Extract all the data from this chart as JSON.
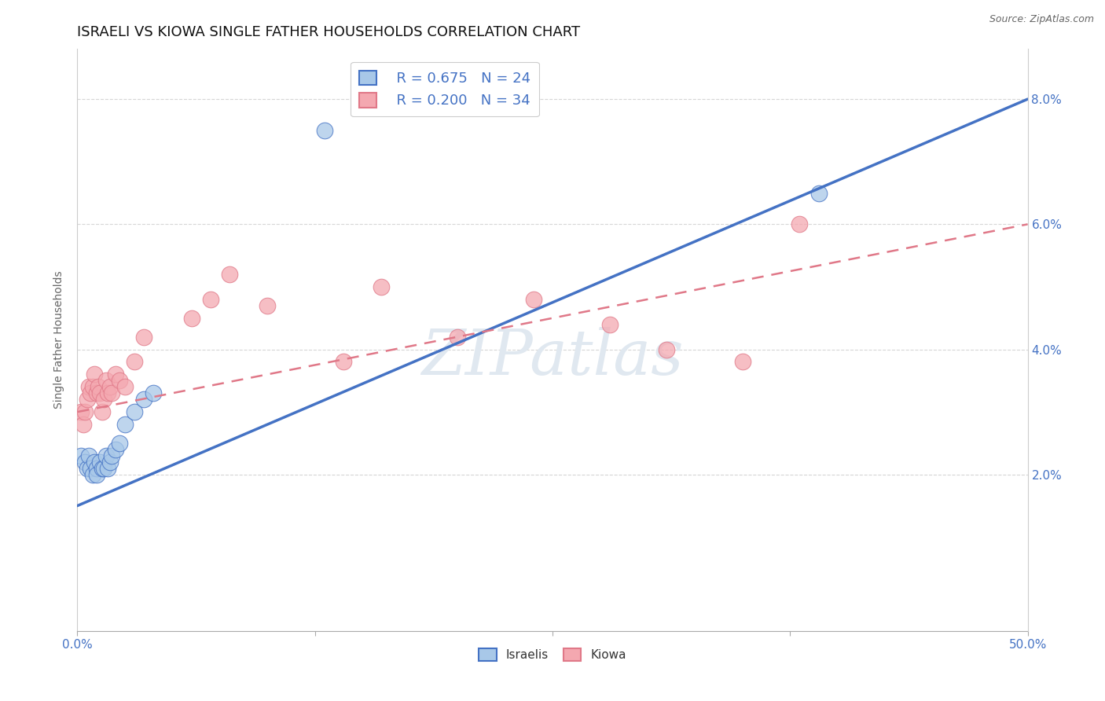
{
  "title": "ISRAELI VS KIOWA SINGLE FATHER HOUSEHOLDS CORRELATION CHART",
  "source": "Source: ZipAtlas.com",
  "ylabel": "Single Father Households",
  "xlim": [
    0.0,
    0.5
  ],
  "ylim": [
    -0.005,
    0.088
  ],
  "yticks": [
    0.02,
    0.04,
    0.06,
    0.08
  ],
  "ytick_labels": [
    "2.0%",
    "4.0%",
    "6.0%",
    "8.0%"
  ],
  "xticks": [
    0.0,
    0.125,
    0.25,
    0.375,
    0.5
  ],
  "xtick_labels": [
    "0.0%",
    "",
    "",
    "",
    "50.0%"
  ],
  "legend_israeli_r": "R = 0.675",
  "legend_israeli_n": "N = 24",
  "legend_kiowa_r": "R = 0.200",
  "legend_kiowa_n": "N = 34",
  "israeli_color": "#a8c8e8",
  "kiowa_color": "#f4a8b0",
  "israeli_line_color": "#4472c4",
  "kiowa_line_color": "#e07888",
  "background_color": "#ffffff",
  "grid_color": "#cccccc",
  "israeli_x": [
    0.002,
    0.004,
    0.005,
    0.006,
    0.007,
    0.008,
    0.009,
    0.01,
    0.01,
    0.012,
    0.013,
    0.014,
    0.015,
    0.016,
    0.017,
    0.018,
    0.02,
    0.022,
    0.025,
    0.03,
    0.035,
    0.04,
    0.13,
    0.39
  ],
  "israeli_y": [
    0.023,
    0.022,
    0.021,
    0.023,
    0.021,
    0.02,
    0.022,
    0.021,
    0.02,
    0.022,
    0.021,
    0.021,
    0.023,
    0.021,
    0.022,
    0.023,
    0.024,
    0.025,
    0.028,
    0.03,
    0.032,
    0.033,
    0.075,
    0.065
  ],
  "kiowa_x": [
    0.002,
    0.003,
    0.004,
    0.005,
    0.006,
    0.007,
    0.008,
    0.009,
    0.01,
    0.011,
    0.012,
    0.013,
    0.014,
    0.015,
    0.016,
    0.017,
    0.018,
    0.02,
    0.022,
    0.025,
    0.03,
    0.035,
    0.06,
    0.07,
    0.08,
    0.1,
    0.14,
    0.16,
    0.2,
    0.24,
    0.28,
    0.31,
    0.35,
    0.38
  ],
  "kiowa_y": [
    0.03,
    0.028,
    0.03,
    0.032,
    0.034,
    0.033,
    0.034,
    0.036,
    0.033,
    0.034,
    0.033,
    0.03,
    0.032,
    0.035,
    0.033,
    0.034,
    0.033,
    0.036,
    0.035,
    0.034,
    0.038,
    0.042,
    0.045,
    0.048,
    0.052,
    0.047,
    0.038,
    0.05,
    0.042,
    0.048,
    0.044,
    0.04,
    0.038,
    0.06
  ],
  "isr_line_x0": 0.0,
  "isr_line_y0": 0.015,
  "isr_line_x1": 0.5,
  "isr_line_y1": 0.08,
  "kiowa_line_x0": 0.0,
  "kiowa_line_y0": 0.03,
  "kiowa_line_x1": 0.5,
  "kiowa_line_y1": 0.06,
  "title_fontsize": 13,
  "label_fontsize": 10,
  "tick_fontsize": 11,
  "legend_fontsize": 13
}
